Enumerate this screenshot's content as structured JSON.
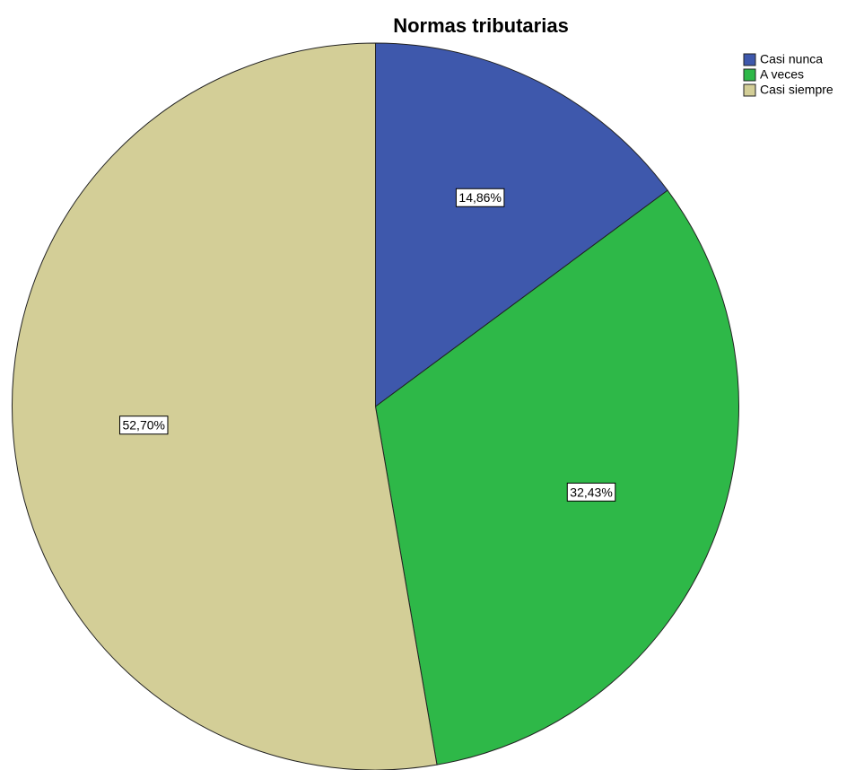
{
  "chart_data": {
    "type": "pie",
    "title": "Normas tributarias",
    "categories": [
      "Casi nunca",
      "A veces",
      "Casi siempre"
    ],
    "values": [
      14.86,
      32.43,
      52.7
    ],
    "value_labels": [
      "14,86%",
      "32,43%",
      "52,70%"
    ],
    "colors": [
      "#3e58ac",
      "#2eb848",
      "#d3ce97"
    ],
    "legend": "top-right"
  }
}
